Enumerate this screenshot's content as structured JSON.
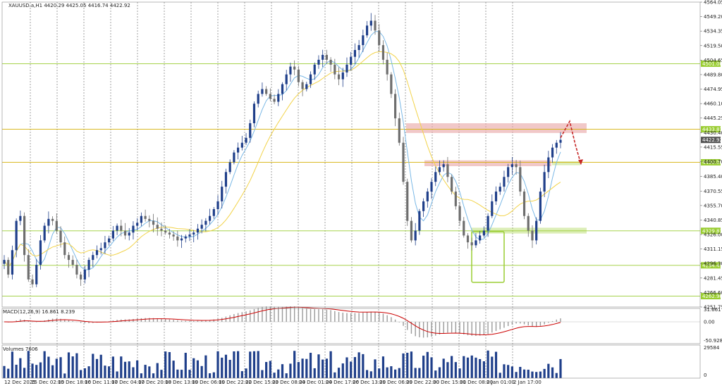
{
  "window": {
    "symbol_info": "XAUUSD.a,H1  4420.29 4425.05 4416.74 4422.92",
    "macd_info": "MACD(12,26,9) 16.861 8.239",
    "volume_info": "Volumes 7606"
  },
  "colors": {
    "bull_candle": "#1f3f8a",
    "bear_candle": "#6e6e6e",
    "level_line": "#9acd32",
    "level_line_major": "#d4b106",
    "resistance_zone": "#e8a3a3",
    "support_zone": "#9acd32",
    "ma_fast": "#7ab8e6",
    "ma_slow": "#f2d34a",
    "macd_signal": "#cc0000",
    "forecast_arrow": "#c62828"
  },
  "chart_data": {
    "type": "candlestick",
    "title": "XAUUSD.a,H1",
    "ylim": [
      4251.75,
      4564.05
    ],
    "price_ticks": [
      "4564.05",
      "4549.20",
      "4534.35",
      "4519.50",
      "4504.65",
      "4489.80",
      "4474.95",
      "4460.10",
      "4445.25",
      "4430.40",
      "4415.55",
      "4400.70",
      "4385.40",
      "4370.55",
      "4355.70",
      "4340.85",
      "4326.00",
      "4311.15",
      "4296.30",
      "4281.45",
      "4266.60",
      "4251.75"
    ],
    "time_labels": [
      "12 Dec 2025",
      "15 Dec 02:00",
      "15 Dec 18:00",
      "16 Dec 11:00",
      "17 Dec 04:00",
      "17 Dec 20:00",
      "18 Dec 13:00",
      "19 Dec 06:00",
      "19 Dec 22:00",
      "22 Dec 15:00",
      "23 Dec 08:00",
      "24 Dec 01:00",
      "24 Dec 17:00",
      "26 Dec 13:00",
      "29 Dec 06:00",
      "29 Dec 22:00",
      "30 Dec 15:00",
      "31 Dec 08:00",
      "2 Jan 01:00",
      "2 Jan 17:00"
    ],
    "current_price": "4422.92",
    "levels": [
      {
        "price": 4501.0,
        "label": "4501.00"
      },
      {
        "price": 4433.81,
        "label": "4433.81"
      },
      {
        "price": 4400.0,
        "label": "4400.00"
      },
      {
        "price": 4329.81,
        "label": "4329.81"
      },
      {
        "price": 4294.45,
        "label": "4294.45"
      },
      {
        "price": 4262.9,
        "label": "4262.90"
      }
    ],
    "closes": [
      4300,
      4285,
      4310,
      4340,
      4345,
      4305,
      4280,
      4275,
      4295,
      4320,
      4335,
      4342,
      4340,
      4330,
      4318,
      4305,
      4300,
      4295,
      4285,
      4280,
      4290,
      4300,
      4305,
      4310,
      4312,
      4318,
      4322,
      4330,
      4335,
      4330,
      4325,
      4328,
      4335,
      4338,
      4345,
      4342,
      4340,
      4336,
      4332,
      4330,
      4328,
      4326,
      4324,
      4320,
      4322,
      4324,
      4326,
      4328,
      4332,
      4336,
      4340,
      4345,
      4352,
      4360,
      4375,
      4390,
      4400,
      4410,
      4415,
      4420,
      4425,
      4440,
      4460,
      4470,
      4475,
      4470,
      4465,
      4462,
      4470,
      4480,
      4490,
      4498,
      4495,
      4482,
      4475,
      4480,
      4490,
      4500,
      4505,
      4510,
      4505,
      4500,
      4490,
      4485,
      4492,
      4500,
      4508,
      4515,
      4520,
      4530,
      4540,
      4545,
      4535,
      4520,
      4505,
      4490,
      4470,
      4445,
      4420,
      4380,
      4340,
      4320,
      4330,
      4350,
      4360,
      4370,
      4380,
      4390,
      4395,
      4398,
      4385,
      4370,
      4355,
      4340,
      4325,
      4318,
      4315,
      4320,
      4325,
      4330,
      4345,
      4360,
      4370,
      4375,
      4385,
      4395,
      4398,
      4395,
      4370,
      4345,
      4330,
      4320,
      4340,
      4370,
      4390,
      4405,
      4415,
      4420,
      4423
    ],
    "macd": {
      "labels": [
        "31.661",
        "0.00",
        "-50.928"
      ],
      "value": 16.861,
      "signal": 8.239
    },
    "volume": {
      "labels": [
        "29584",
        "0"
      ],
      "value": 7606
    }
  }
}
